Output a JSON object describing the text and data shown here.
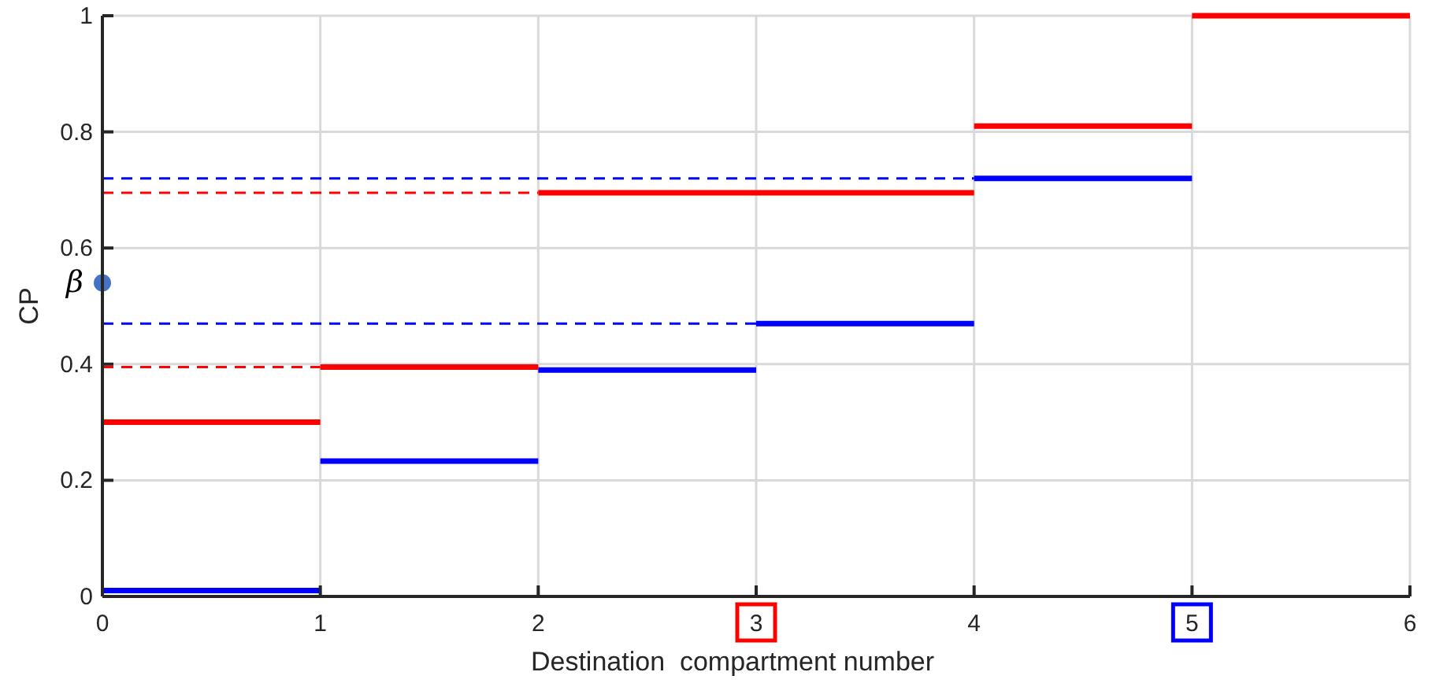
{
  "chart_data": {
    "type": "line",
    "xlabel": "Destination  compartment number",
    "ylabel": "CP",
    "xlim": [
      0,
      6
    ],
    "xticks": [
      0,
      1,
      2,
      3,
      4,
      5,
      6
    ],
    "ylim": [
      0,
      1
    ],
    "yticks": [
      0,
      0.2,
      0.4,
      0.6,
      0.8,
      1
    ],
    "grid": true,
    "line_style": "solid",
    "series": [
      {
        "color": "#ff0000",
        "x": [
          0,
          1
        ],
        "values": [
          0.3,
          0.3
        ]
      },
      {
        "color": "#ff0000",
        "x": [
          1,
          2
        ],
        "values": [
          0.395,
          0.395
        ]
      },
      {
        "color": "#ff0000",
        "x": [
          2,
          4
        ],
        "values": [
          0.695,
          0.695
        ]
      },
      {
        "color": "#ff0000",
        "x": [
          4,
          5
        ],
        "values": [
          0.81,
          0.81
        ]
      },
      {
        "color": "#ff0000",
        "x": [
          5,
          6
        ],
        "values": [
          1.0,
          1.0
        ]
      },
      {
        "color": "#0000ff",
        "x": [
          0,
          1
        ],
        "values": [
          0.01,
          0.01
        ]
      },
      {
        "color": "#0000ff",
        "x": [
          1,
          2
        ],
        "values": [
          0.233,
          0.233
        ]
      },
      {
        "color": "#0000ff",
        "x": [
          2,
          3
        ],
        "values": [
          0.39,
          0.39
        ]
      },
      {
        "color": "#0000ff",
        "x": [
          3,
          4
        ],
        "values": [
          0.47,
          0.47
        ]
      },
      {
        "color": "#0000ff",
        "x": [
          4,
          5
        ],
        "values": [
          0.72,
          0.72
        ]
      },
      {
        "color": "#0000ff",
        "line_style": "dashed",
        "x": [
          0,
          4
        ],
        "values": [
          0.72,
          0.72
        ]
      },
      {
        "color": "#ff0000",
        "line_style": "dashed",
        "x": [
          0,
          2
        ],
        "values": [
          0.695,
          0.695
        ]
      },
      {
        "color": "#0000ff",
        "line_style": "dashed",
        "x": [
          0,
          3
        ],
        "values": [
          0.47,
          0.47
        ]
      },
      {
        "color": "#ff0000",
        "line_style": "dashed",
        "x": [
          0,
          1
        ],
        "values": [
          0.395,
          0.395
        ]
      },
      {
        "type": "scatter",
        "color": "#4472c4",
        "marker": "circle",
        "x": [
          0
        ],
        "values": [
          0.54
        ]
      }
    ],
    "annotations": [
      {
        "text": "β",
        "x": 0,
        "y": 0.54
      }
    ]
  }
}
